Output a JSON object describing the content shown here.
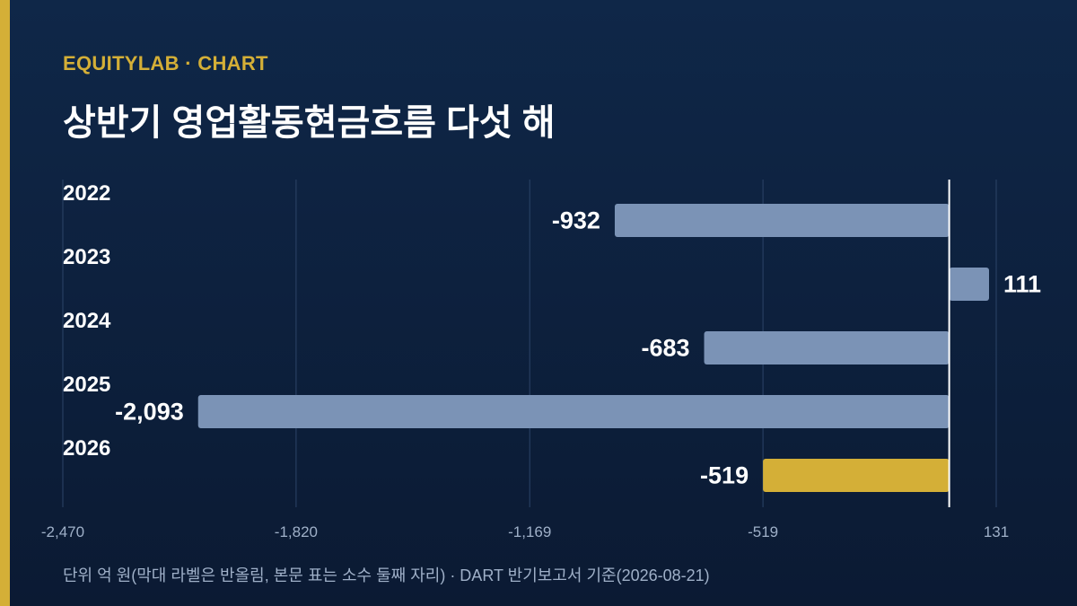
{
  "header": {
    "brand": "EQUITYLAB · CHART",
    "title": "상반기 영업활동현금흐름 다섯 해"
  },
  "footer": {
    "note": "단위 억 원(막대 라벨은 반올림, 본문 표는 소수 둘째 자리) · DART 반기보고서 기준(2026-08-21)"
  },
  "colors": {
    "background": "#0f2748",
    "accent": "#d4af37",
    "bar_default": "#7b93b6",
    "bar_highlight": "#d4af37",
    "text": "#ffffff",
    "muted": "#9fb0c8"
  },
  "chart_data": {
    "type": "bar",
    "orientation": "horizontal",
    "categories": [
      "2022",
      "2023",
      "2024",
      "2025",
      "2026"
    ],
    "values": [
      -932,
      111,
      -683,
      -2093,
      -519
    ],
    "value_labels": [
      "-932",
      "111",
      "-683",
      "-2,093",
      "-519"
    ],
    "highlight_index": 4,
    "xlim": [
      -2470,
      131
    ],
    "xticks": [
      -2470,
      -1820,
      -1169,
      -519,
      131
    ],
    "xtick_labels": [
      "-2,470",
      "-1,820",
      "-1,169",
      "-519",
      "131"
    ],
    "grid": true,
    "xlabel": "",
    "ylabel": ""
  }
}
